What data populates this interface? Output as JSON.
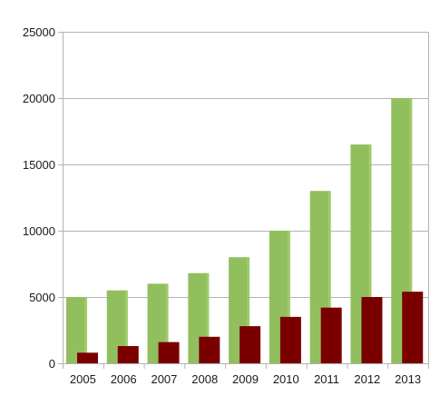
{
  "chart_data": {
    "type": "bar",
    "categories": [
      "2005",
      "2006",
      "2007",
      "2008",
      "2009",
      "2010",
      "2011",
      "2012",
      "2013"
    ],
    "series": [
      {
        "values": [
          5000,
          5500,
          6000,
          6800,
          8000,
          10000,
          13000,
          16500,
          20000
        ],
        "color": "#92bf5d"
      },
      {
        "values": [
          800,
          1300,
          1600,
          2000,
          2800,
          3500,
          4200,
          5000,
          5400
        ],
        "color": "#7a0000"
      }
    ],
    "yticks": [
      "0",
      "5000",
      "10000",
      "15000",
      "20000",
      "25000"
    ],
    "ylim": [
      0,
      25000
    ],
    "title": "",
    "xlabel": "",
    "ylabel": "",
    "grid": "horizontal",
    "legend": "none"
  }
}
